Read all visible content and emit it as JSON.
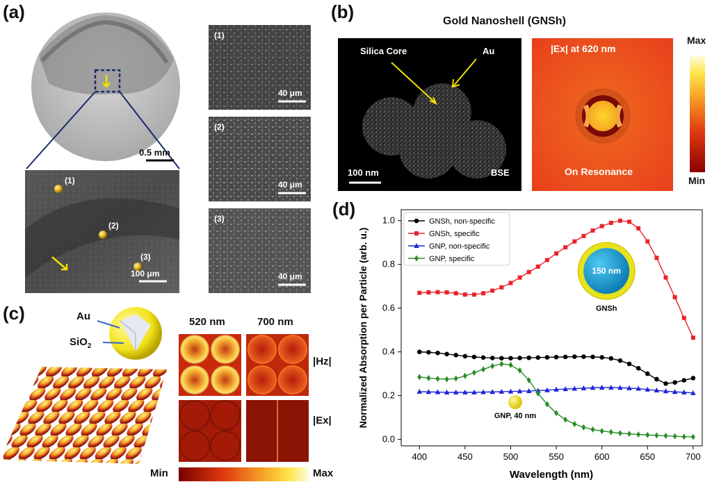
{
  "panels": {
    "a": "(a)",
    "b": "(b)",
    "c": "(c)",
    "d": "(d)"
  },
  "panel_a": {
    "overview_scale": "0.5 mm",
    "zoom_points": [
      "(1)",
      "(2)",
      "(3)"
    ],
    "zoom_scale": "100 μm",
    "tiles": [
      {
        "label": "(1)",
        "scale": "40 μm"
      },
      {
        "label": "(2)",
        "scale": "40 μm"
      },
      {
        "label": "(3)",
        "scale": "40 μm"
      }
    ]
  },
  "panel_b": {
    "title": "Gold Nanoshell (GNSh)",
    "left_labels": {
      "core": "Silica Core",
      "shell": "Au",
      "scale": "100 nm",
      "mode": "BSE"
    },
    "right_labels": {
      "field": "|Ex| at 620 nm",
      "state": "On Resonance"
    },
    "colorbar": {
      "max": "Max",
      "min": "Min"
    }
  },
  "panel_c": {
    "au": "Au",
    "sio2": "SiO",
    "sio2_sub": "2",
    "col_labels": [
      "520 nm",
      "700 nm"
    ],
    "row_labels": [
      "|Hz|",
      "|Ex|"
    ],
    "colorbar_min": "Min",
    "colorbar_max": "Max"
  },
  "chart_data": {
    "type": "line",
    "title": "",
    "xlabel": "Wavelength (nm)",
    "ylabel": "Normalized Absorption per Particle (arb. u.)",
    "xlim": [
      380,
      710
    ],
    "ylim": [
      -0.03,
      1.05
    ],
    "xticks": [
      400,
      450,
      500,
      550,
      600,
      650,
      700
    ],
    "yticks": [
      0.0,
      0.2,
      0.4,
      0.6,
      0.8,
      1.0
    ],
    "x": [
      400,
      410,
      420,
      430,
      440,
      450,
      460,
      470,
      480,
      490,
      500,
      510,
      520,
      530,
      540,
      550,
      560,
      570,
      580,
      590,
      600,
      610,
      620,
      630,
      640,
      650,
      660,
      670,
      680,
      690,
      700
    ],
    "series": [
      {
        "name": "GNSh, non-specific",
        "color": "#000000",
        "marker": "circle",
        "values": [
          0.4,
          0.398,
          0.395,
          0.39,
          0.385,
          0.38,
          0.377,
          0.374,
          0.372,
          0.371,
          0.371,
          0.372,
          0.373,
          0.374,
          0.375,
          0.376,
          0.377,
          0.378,
          0.378,
          0.377,
          0.375,
          0.37,
          0.36,
          0.345,
          0.325,
          0.3,
          0.275,
          0.255,
          0.26,
          0.27,
          0.28
        ]
      },
      {
        "name": "GNSh, specific",
        "color": "#e8232a",
        "marker": "square",
        "values": [
          0.67,
          0.672,
          0.673,
          0.672,
          0.668,
          0.662,
          0.662,
          0.668,
          0.68,
          0.695,
          0.715,
          0.74,
          0.765,
          0.79,
          0.82,
          0.85,
          0.878,
          0.905,
          0.93,
          0.955,
          0.975,
          0.99,
          1.0,
          0.995,
          0.965,
          0.905,
          0.83,
          0.74,
          0.65,
          0.555,
          0.465
        ]
      },
      {
        "name": "GNP, non-specific",
        "color": "#1f24d6",
        "marker": "triangle",
        "values": [
          0.218,
          0.217,
          0.216,
          0.215,
          0.215,
          0.215,
          0.215,
          0.216,
          0.217,
          0.218,
          0.219,
          0.22,
          0.221,
          0.223,
          0.225,
          0.228,
          0.23,
          0.232,
          0.234,
          0.236,
          0.237,
          0.237,
          0.236,
          0.234,
          0.232,
          0.228,
          0.224,
          0.22,
          0.217,
          0.215,
          0.212
        ]
      },
      {
        "name": "GNP, specific",
        "color": "#2a8c2a",
        "marker": "diamond",
        "values": [
          0.285,
          0.28,
          0.277,
          0.275,
          0.278,
          0.29,
          0.305,
          0.32,
          0.335,
          0.345,
          0.34,
          0.315,
          0.27,
          0.21,
          0.16,
          0.12,
          0.09,
          0.07,
          0.055,
          0.045,
          0.038,
          0.033,
          0.028,
          0.025,
          0.022,
          0.02,
          0.018,
          0.016,
          0.014,
          0.012,
          0.011
        ]
      }
    ],
    "annotations": [
      {
        "text": "150 nm",
        "x": 605,
        "y": 0.77
      },
      {
        "text": "GNSh",
        "x": 605,
        "y": 0.6
      },
      {
        "text": "GNP, 40 nm",
        "x": 505,
        "y": 0.11
      }
    ],
    "legend": "top-left"
  }
}
